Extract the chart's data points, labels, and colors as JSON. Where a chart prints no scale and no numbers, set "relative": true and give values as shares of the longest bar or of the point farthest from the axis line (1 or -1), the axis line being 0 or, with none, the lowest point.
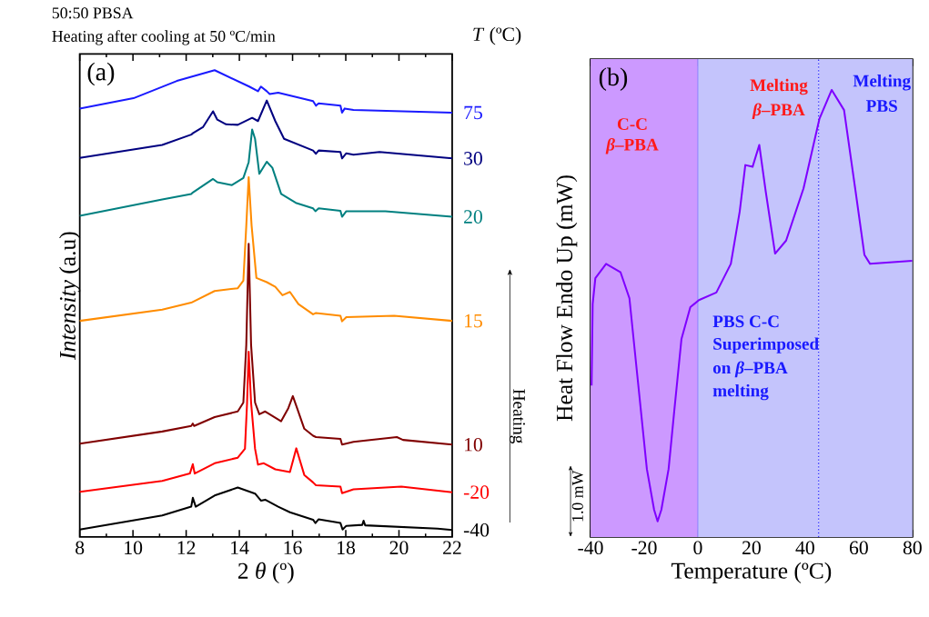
{
  "chart_data": [
    {
      "type": "line",
      "title": "50:50 PBSA",
      "subtitle": "Heating after cooling at 50 ºC/min",
      "xlabel": "2 *θ* (º)",
      "ylabel": "*Intensity* (a.u)",
      "legend_title": "*T* (ºC)",
      "annotations": [
        "(a)",
        "Heating"
      ],
      "relative": true,
      "xlim": [
        8,
        22
      ],
      "xticks": [
        8,
        10,
        12,
        14,
        16,
        18,
        20,
        22
      ],
      "series": [
        {
          "name": "75",
          "color": "#1a1aff",
          "x": [
            8,
            10.02,
            11.65,
            13.07,
            14.37,
            14.7,
            14.81,
            15.03,
            15.14,
            15.46,
            16.77,
            16.88,
            16.98,
            17.8,
            17.86,
            17.96,
            18.29,
            22
          ],
          "values": [
            0.918,
            0.94,
            0.977,
            1.0,
            0.965,
            0.955,
            0.965,
            0.955,
            0.949,
            0.952,
            0.934,
            0.924,
            0.929,
            0.924,
            0.909,
            0.918,
            0.915,
            0.909
          ]
        },
        {
          "name": "30",
          "color": "#000080",
          "x": [
            8,
            11.1,
            12.19,
            12.25,
            12.63,
            13.01,
            13.17,
            13.5,
            13.94,
            14.48,
            14.7,
            15.03,
            15.35,
            15.68,
            16.77,
            16.88,
            16.98,
            17.8,
            17.86,
            18.02,
            18.29,
            19.27,
            22
          ],
          "values": [
            0.812,
            0.84,
            0.862,
            0.865,
            0.878,
            0.912,
            0.894,
            0.884,
            0.883,
            0.898,
            0.891,
            0.935,
            0.891,
            0.853,
            0.828,
            0.821,
            0.828,
            0.825,
            0.811,
            0.822,
            0.819,
            0.825,
            0.811
          ]
        },
        {
          "name": "20",
          "color": "#008080",
          "x": [
            8,
            11.1,
            12.19,
            12.25,
            13.01,
            13.17,
            13.72,
            14.15,
            14.35,
            14.48,
            14.59,
            14.75,
            15.03,
            15.24,
            15.57,
            16.12,
            16.77,
            16.86,
            16.98,
            17.8,
            17.86,
            18.02,
            19.49,
            22
          ],
          "values": [
            0.688,
            0.723,
            0.735,
            0.738,
            0.767,
            0.76,
            0.754,
            0.769,
            0.803,
            0.873,
            0.853,
            0.778,
            0.804,
            0.791,
            0.735,
            0.716,
            0.704,
            0.698,
            0.704,
            0.699,
            0.686,
            0.698,
            0.698,
            0.686
          ]
        },
        {
          "name": "15",
          "color": "#ff8c00",
          "x": [
            8,
            11.1,
            12.19,
            13.07,
            13.94,
            14.15,
            14.26,
            14.35,
            14.46,
            14.64,
            15.03,
            15.35,
            15.62,
            15.9,
            16.22,
            16.77,
            16.88,
            17.8,
            17.86,
            18.02,
            19.82,
            22
          ],
          "values": [
            0.463,
            0.487,
            0.502,
            0.527,
            0.533,
            0.549,
            0.667,
            0.771,
            0.667,
            0.555,
            0.546,
            0.536,
            0.518,
            0.525,
            0.499,
            0.477,
            0.48,
            0.474,
            0.462,
            0.471,
            0.474,
            0.463
          ]
        },
        {
          "name": "10",
          "color": "#800000",
          "x": [
            8,
            11.1,
            12.19,
            12.25,
            12.3,
            13.07,
            13.94,
            14.15,
            14.26,
            14.35,
            14.44,
            14.59,
            14.75,
            14.97,
            15.57,
            15.84,
            16.01,
            16.17,
            16.44,
            16.77,
            16.88,
            17.8,
            17.86,
            18.29,
            19.92,
            20.15,
            22
          ],
          "values": [
            0.2,
            0.226,
            0.238,
            0.243,
            0.238,
            0.257,
            0.269,
            0.288,
            0.412,
            0.628,
            0.412,
            0.288,
            0.263,
            0.269,
            0.248,
            0.276,
            0.302,
            0.276,
            0.232,
            0.217,
            0.214,
            0.21,
            0.198,
            0.204,
            0.214,
            0.208,
            0.198
          ]
        },
        {
          "name": "-20",
          "color": "#ff0000",
          "x": [
            8,
            11.1,
            12.14,
            12.25,
            12.32,
            13.07,
            13.94,
            14.21,
            14.29,
            14.35,
            14.44,
            14.59,
            14.7,
            14.92,
            15.35,
            15.9,
            16.14,
            16.44,
            16.77,
            16.88,
            17.8,
            17.86,
            18.29,
            20.09,
            22
          ],
          "values": [
            0.097,
            0.12,
            0.136,
            0.156,
            0.136,
            0.158,
            0.17,
            0.189,
            0.288,
            0.397,
            0.288,
            0.189,
            0.155,
            0.158,
            0.145,
            0.139,
            0.19,
            0.133,
            0.117,
            0.111,
            0.108,
            0.094,
            0.102,
            0.108,
            0.096
          ]
        },
        {
          "name": "-40",
          "color": "#000000",
          "x": [
            8,
            11.1,
            12.19,
            12.25,
            12.36,
            13.07,
            13.94,
            14.59,
            14.81,
            14.97,
            15.46,
            15.9,
            16.77,
            16.86,
            16.98,
            17.8,
            17.88,
            18.02,
            18.62,
            18.67,
            18.73,
            21.45,
            22
          ],
          "values": [
            0.016,
            0.046,
            0.065,
            0.084,
            0.065,
            0.089,
            0.106,
            0.093,
            0.078,
            0.08,
            0.065,
            0.053,
            0.037,
            0.03,
            0.038,
            0.03,
            0.016,
            0.024,
            0.026,
            0.035,
            0.025,
            0.018,
            0.015
          ]
        }
      ]
    },
    {
      "type": "line",
      "xlabel": "Temperature (ºC)",
      "ylabel": "Heat Flow Endo Up (mW)",
      "annotations": [
        "(b)",
        "C-C",
        "*β*–PBA",
        "Melting",
        "*β*–PBA",
        "Melting",
        "PBS",
        "PBS C-C",
        "Superimposed",
        "on *β*–PBA",
        "melting",
        "1.0 mW"
      ],
      "relative": true,
      "xlim": [
        -40,
        80
      ],
      "xticks": [
        -40,
        -20,
        0,
        20,
        40,
        60,
        80
      ],
      "bands": [
        {
          "axis": "x",
          "from": -40,
          "to": 0,
          "color": "#cc99ff"
        },
        {
          "axis": "x",
          "from": 0,
          "to": 45,
          "color": "#c4c4fc"
        },
        {
          "axis": "x",
          "from": 45,
          "to": 80,
          "color": "#c4c4fc"
        }
      ],
      "ref_lines": [
        {
          "axis": "x",
          "value": 0,
          "color": "#7676fd",
          "line_style": "solid"
        },
        {
          "axis": "x",
          "value": 45,
          "color": "#3333ff",
          "line_style": "dotted"
        }
      ],
      "series": [
        {
          "color": "#7f00ff",
          "x": [
            -39.6,
            -39.2,
            -38.2,
            -34.2,
            -28.8,
            -25.5,
            -22.3,
            -19.0,
            -16.3,
            -15.0,
            -13.6,
            -10.9,
            -8.8,
            -6.1,
            -2.8,
            0.4,
            6.9,
            12.3,
            15.6,
            17.7,
            20.4,
            22.9,
            25.3,
            28.8,
            32.9,
            39.4,
            45.3,
            49.9,
            54.5,
            58.8,
            62.1,
            64.2,
            79.9
          ],
          "values": [
            0.339,
            0.521,
            0.579,
            0.611,
            0.592,
            0.534,
            0.346,
            0.152,
            0.061,
            0.035,
            0.061,
            0.152,
            0.281,
            0.443,
            0.514,
            0.53,
            0.547,
            0.611,
            0.728,
            0.832,
            0.828,
            0.877,
            0.773,
            0.634,
            0.663,
            0.78,
            0.935,
            1.0,
            0.955,
            0.773,
            0.631,
            0.611,
            0.618
          ]
        }
      ]
    }
  ]
}
